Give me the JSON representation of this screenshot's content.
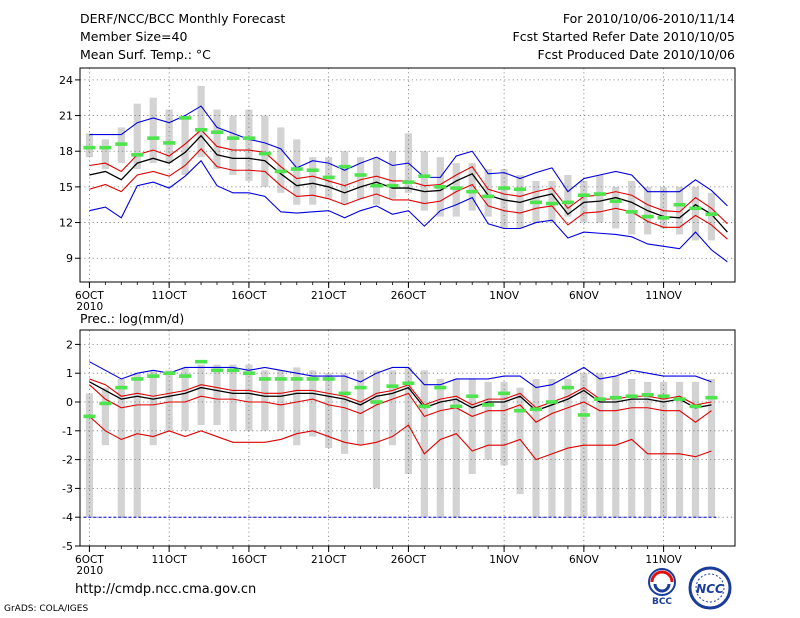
{
  "header": {
    "title": "DERF/NCC/BCC Monthly Forecast",
    "member_size": "Member Size=40",
    "variable": "Mean Surf. Temp.: °C",
    "period": "For 2010/10/06-2010/11/14",
    "fcst_started": "Fcst Started Refer Date 2010/10/05",
    "fcst_produced": "Fcst Produced Date 2010/10/06"
  },
  "footer": {
    "url": "http://cmdp.ncc.cma.gov.cn",
    "credit": "GrADS: COLA/IGES",
    "logo_left": "BCC",
    "logo_right": "NCC"
  },
  "colors": {
    "box": "#d3d3d3",
    "green": "#4ee44e",
    "mean": "#000000",
    "inner": "#e00000",
    "outer": "#0000e0",
    "grid": "#777777"
  },
  "chart_data": [
    {
      "type": "line",
      "title": "Mean Surf. Temp.: °C",
      "days": [
        1,
        2,
        3,
        4,
        5,
        6,
        7,
        8,
        9,
        10,
        11,
        12,
        13,
        14,
        15,
        16,
        17,
        18,
        19,
        20,
        21,
        22,
        23,
        24,
        25,
        26,
        27,
        28,
        29,
        30,
        31,
        32,
        33,
        34,
        35,
        36,
        37,
        38,
        39,
        40
      ],
      "x_ticks": [
        {
          "day": 1,
          "label": "6OCT",
          "sub": "2010"
        },
        {
          "day": 6,
          "label": "11OCT"
        },
        {
          "day": 11,
          "label": "16OCT"
        },
        {
          "day": 16,
          "label": "21OCT"
        },
        {
          "day": 21,
          "label": "26OCT"
        },
        {
          "day": 27,
          "label": "1NOV"
        },
        {
          "day": 32,
          "label": "6NOV"
        },
        {
          "day": 37,
          "label": "11NOV"
        }
      ],
      "ylim": [
        7,
        25
      ],
      "yticks": [
        9,
        12,
        15,
        18,
        21,
        24
      ],
      "box": {
        "lo": [
          17.5,
          16.5,
          17.0,
          16.5,
          17.0,
          17.0,
          16.0,
          17.5,
          16.5,
          16.0,
          15.5,
          15.0,
          14.5,
          13.5,
          13.5,
          14.0,
          13.5,
          14.0,
          13.5,
          14.0,
          14.5,
          13.0,
          12.5,
          12.5,
          13.0,
          12.5,
          11.5,
          11.5,
          12.0,
          12.0,
          12.5,
          12.0,
          12.0,
          11.5,
          11.0,
          11.0,
          11.5,
          11.0,
          10.5,
          10.5
        ],
        "hi": [
          19.5,
          19.0,
          20.0,
          22.0,
          22.5,
          21.5,
          21.0,
          23.5,
          21.5,
          21.0,
          21.5,
          21.0,
          20.0,
          19.0,
          17.5,
          17.5,
          18.0,
          17.5,
          17.5,
          18.0,
          19.5,
          18.0,
          17.5,
          17.0,
          17.0,
          16.5,
          16.5,
          16.0,
          15.5,
          15.5,
          16.0,
          15.5,
          16.0,
          15.0,
          15.5,
          15.0,
          15.0,
          15.0,
          15.0,
          14.5
        ]
      },
      "series": [
        {
          "name": "outer-high",
          "color": "outer",
          "values": [
            19.4,
            19.4,
            19.4,
            20.4,
            20.8,
            20.4,
            21.0,
            21.8,
            20.0,
            19.5,
            19.0,
            18.7,
            18.2,
            16.6,
            17.2,
            17.0,
            16.4,
            17.0,
            17.5,
            16.8,
            17.0,
            15.8,
            15.8,
            17.6,
            18.0,
            16.1,
            16.2,
            15.7,
            16.2,
            16.6,
            14.6,
            15.7,
            16.0,
            16.3,
            16.0,
            14.6,
            14.6,
            14.6,
            15.6,
            14.7
          ]
        },
        {
          "name": "inner-high",
          "color": "inner",
          "values": [
            16.8,
            17.0,
            16.3,
            17.7,
            18.1,
            17.6,
            18.6,
            19.8,
            18.4,
            18.1,
            18.1,
            17.9,
            16.7,
            15.7,
            15.9,
            15.5,
            15.1,
            15.6,
            15.9,
            15.5,
            15.5,
            15.1,
            15.2,
            16.0,
            16.7,
            14.8,
            14.4,
            14.2,
            14.6,
            14.9,
            13.2,
            14.2,
            14.3,
            14.6,
            14.3,
            13.5,
            13.0,
            12.9,
            14.1,
            13.2
          ]
        },
        {
          "name": "mean",
          "color": "mean",
          "values": [
            16.0,
            16.3,
            15.6,
            17.0,
            17.4,
            17.0,
            17.9,
            19.3,
            17.7,
            17.4,
            17.4,
            17.2,
            16.1,
            15.1,
            15.3,
            15.0,
            14.5,
            15.0,
            15.4,
            14.9,
            14.9,
            14.6,
            14.7,
            15.5,
            16.1,
            14.3,
            13.9,
            13.7,
            14.1,
            14.4,
            12.7,
            13.7,
            13.8,
            14.1,
            13.7,
            13.0,
            12.5,
            12.4,
            13.5,
            12.7
          ]
        },
        {
          "name": "inner-low",
          "color": "inner",
          "values": [
            14.8,
            15.2,
            14.6,
            16.0,
            16.3,
            15.9,
            16.8,
            18.2,
            16.7,
            16.4,
            16.4,
            16.3,
            15.1,
            14.2,
            14.3,
            14.0,
            13.5,
            14.0,
            14.4,
            13.9,
            13.9,
            13.6,
            13.8,
            14.6,
            15.2,
            13.4,
            13.0,
            12.8,
            13.2,
            13.4,
            11.8,
            12.8,
            12.9,
            13.2,
            12.9,
            12.1,
            11.6,
            11.6,
            12.6,
            11.8
          ]
        },
        {
          "name": "outer-low",
          "color": "outer",
          "values": [
            13.0,
            13.3,
            12.4,
            15.1,
            15.4,
            14.9,
            15.9,
            17.2,
            15.1,
            14.5,
            14.5,
            14.2,
            12.9,
            12.8,
            12.9,
            13.0,
            12.4,
            13.0,
            13.4,
            12.7,
            13.0,
            11.7,
            13.0,
            13.5,
            14.1,
            11.9,
            11.5,
            11.5,
            12.0,
            12.2,
            10.7,
            11.2,
            11.1,
            11.0,
            10.8,
            10.2,
            10.0,
            9.8,
            11.2,
            9.7
          ]
        }
      ],
      "tail": {
        "day_from": 40,
        "day_to": 41,
        "values": [
          [
            14.7,
            13.4
          ],
          [
            13.2,
            11.9
          ],
          [
            12.7,
            11.2
          ],
          [
            11.8,
            10.6
          ],
          [
            9.7,
            8.7
          ]
        ]
      },
      "green_bars": [
        18.3,
        18.3,
        18.6,
        17.7,
        19.1,
        18.7,
        20.8,
        19.8,
        19.6,
        19.1,
        19.1,
        17.8,
        16.3,
        16.5,
        16.4,
        15.8,
        16.7,
        16.0,
        15.1,
        15.1,
        15.4,
        15.9,
        15.0,
        14.9,
        14.6,
        14.2,
        14.9,
        14.8,
        13.7,
        13.6,
        13.7,
        14.3,
        14.4,
        13.8,
        12.9,
        12.5,
        12.4,
        13.5,
        13.2,
        12.7
      ]
    },
    {
      "type": "line",
      "title": "Prec.: log(mm/d)",
      "days": [
        1,
        2,
        3,
        4,
        5,
        6,
        7,
        8,
        9,
        10,
        11,
        12,
        13,
        14,
        15,
        16,
        17,
        18,
        19,
        20,
        21,
        22,
        23,
        24,
        25,
        26,
        27,
        28,
        29,
        30,
        31,
        32,
        33,
        34,
        35,
        36,
        37,
        38,
        39,
        40
      ],
      "x_ticks": [
        {
          "day": 1,
          "label": "6OCT",
          "sub": "2010"
        },
        {
          "day": 6,
          "label": "11OCT"
        },
        {
          "day": 11,
          "label": "16OCT"
        },
        {
          "day": 16,
          "label": "21OCT"
        },
        {
          "day": 21,
          "label": "26OCT"
        },
        {
          "day": 27,
          "label": "1NOV"
        },
        {
          "day": 32,
          "label": "6NOV"
        },
        {
          "day": 37,
          "label": "11NOV"
        }
      ],
      "ylim": [
        -5,
        2.5
      ],
      "yticks": [
        -5,
        -4,
        -3,
        -2,
        -1,
        0,
        1,
        2
      ],
      "floor_line": -4,
      "box": {
        "lo": [
          -4,
          -1.5,
          -4,
          -4,
          -1.5,
          -1.0,
          -1.0,
          -0.8,
          -0.8,
          -1.0,
          -1.0,
          -1.0,
          -1.0,
          -1.5,
          -1.2,
          -1.6,
          -1.8,
          -1.5,
          -3.0,
          -1.5,
          -2.5,
          -4,
          -4,
          -4,
          -2.5,
          -2.0,
          -2.2,
          -3.2,
          -4,
          -4,
          -4,
          -4,
          -4,
          -4,
          -4,
          -4,
          -4,
          -4,
          -4,
          -4
        ],
        "hi": [
          0.3,
          0.5,
          0.8,
          1.0,
          1.1,
          1.1,
          1.2,
          1.3,
          1.3,
          1.3,
          1.3,
          1.1,
          1.1,
          1.2,
          1.1,
          1.0,
          1.0,
          1.1,
          1.1,
          1.1,
          1.2,
          1.1,
          0.8,
          0.8,
          0.8,
          0.7,
          0.7,
          0.5,
          0.8,
          0.8,
          0.8,
          1.0,
          1.0,
          0.9,
          0.8,
          0.7,
          0.7,
          0.7,
          0.7,
          0.8
        ]
      },
      "series": [
        {
          "name": "outer-high",
          "color": "outer",
          "values": [
            1.4,
            1.1,
            0.8,
            1.0,
            1.1,
            1.0,
            1.2,
            1.2,
            1.2,
            1.2,
            1.1,
            1.2,
            1.1,
            1.0,
            0.9,
            0.9,
            0.9,
            0.7,
            1.0,
            1.2,
            1.2,
            0.6,
            0.6,
            0.8,
            0.8,
            0.8,
            0.9,
            0.9,
            0.5,
            0.6,
            0.9,
            1.2,
            0.8,
            0.9,
            1.1,
            1.0,
            0.9,
            0.9,
            0.9,
            0.7
          ]
        },
        {
          "name": "inner-high",
          "color": "inner",
          "values": [
            0.8,
            0.6,
            0.2,
            0.3,
            0.2,
            0.3,
            0.4,
            0.6,
            0.5,
            0.4,
            0.4,
            0.3,
            0.3,
            0.4,
            0.4,
            0.3,
            0.2,
            0.0,
            0.3,
            0.4,
            0.6,
            -0.1,
            0.1,
            0.2,
            -0.1,
            0.1,
            0.1,
            0.3,
            -0.2,
            0.0,
            0.2,
            0.5,
            0.1,
            0.1,
            0.2,
            0.2,
            0.1,
            0.2,
            -0.1,
            0.0
          ]
        },
        {
          "name": "mean",
          "color": "mean",
          "values": [
            0.7,
            0.4,
            0.1,
            0.2,
            0.1,
            0.2,
            0.3,
            0.5,
            0.4,
            0.3,
            0.3,
            0.2,
            0.2,
            0.3,
            0.3,
            0.2,
            0.1,
            -0.1,
            0.2,
            0.3,
            0.5,
            -0.2,
            0.0,
            0.1,
            -0.2,
            0.0,
            0.0,
            0.2,
            -0.3,
            -0.1,
            0.1,
            0.4,
            0.0,
            0.0,
            0.1,
            0.1,
            0.0,
            0.1,
            -0.2,
            -0.1
          ]
        },
        {
          "name": "inner-low",
          "color": "inner",
          "values": [
            0.6,
            0.1,
            -0.2,
            -0.1,
            -0.1,
            0.0,
            0.0,
            0.2,
            0.1,
            0.1,
            0.0,
            0.0,
            -0.1,
            0.0,
            0.1,
            -0.1,
            -0.2,
            -0.4,
            -0.1,
            0.1,
            0.3,
            -0.5,
            -0.3,
            -0.2,
            -0.5,
            -0.3,
            -0.3,
            -0.1,
            -0.7,
            -0.4,
            -0.2,
            0.0,
            -0.3,
            -0.3,
            -0.2,
            -0.2,
            -0.3,
            -0.3,
            -0.7,
            -0.3
          ]
        },
        {
          "name": "outer-low",
          "color": "inner",
          "values": [
            -0.5,
            -1.0,
            -1.3,
            -1.1,
            -1.2,
            -1.0,
            -1.2,
            -1.0,
            -1.2,
            -1.4,
            -1.4,
            -1.4,
            -1.3,
            -1.1,
            -1.0,
            -1.2,
            -1.4,
            -1.5,
            -1.4,
            -1.2,
            -0.8,
            -1.8,
            -1.3,
            -1.1,
            -1.7,
            -1.5,
            -1.5,
            -1.3,
            -2.0,
            -1.8,
            -1.6,
            -1.5,
            -1.5,
            -1.5,
            -1.3,
            -1.8,
            -1.8,
            -1.8,
            -1.9,
            -1.7
          ]
        }
      ],
      "green_bars": [
        -0.5,
        -0.05,
        0.5,
        0.8,
        0.9,
        1.0,
        0.9,
        1.4,
        1.1,
        1.1,
        1.0,
        0.8,
        0.8,
        0.8,
        0.8,
        0.8,
        0.3,
        0.5,
        0.0,
        0.55,
        0.65,
        -0.15,
        0.5,
        -0.15,
        0.2,
        -0.1,
        0.3,
        -0.3,
        -0.25,
        0.0,
        0.5,
        -0.45,
        0.1,
        0.15,
        0.2,
        0.25,
        0.2,
        0.1,
        -0.15,
        0.15
      ]
    }
  ]
}
